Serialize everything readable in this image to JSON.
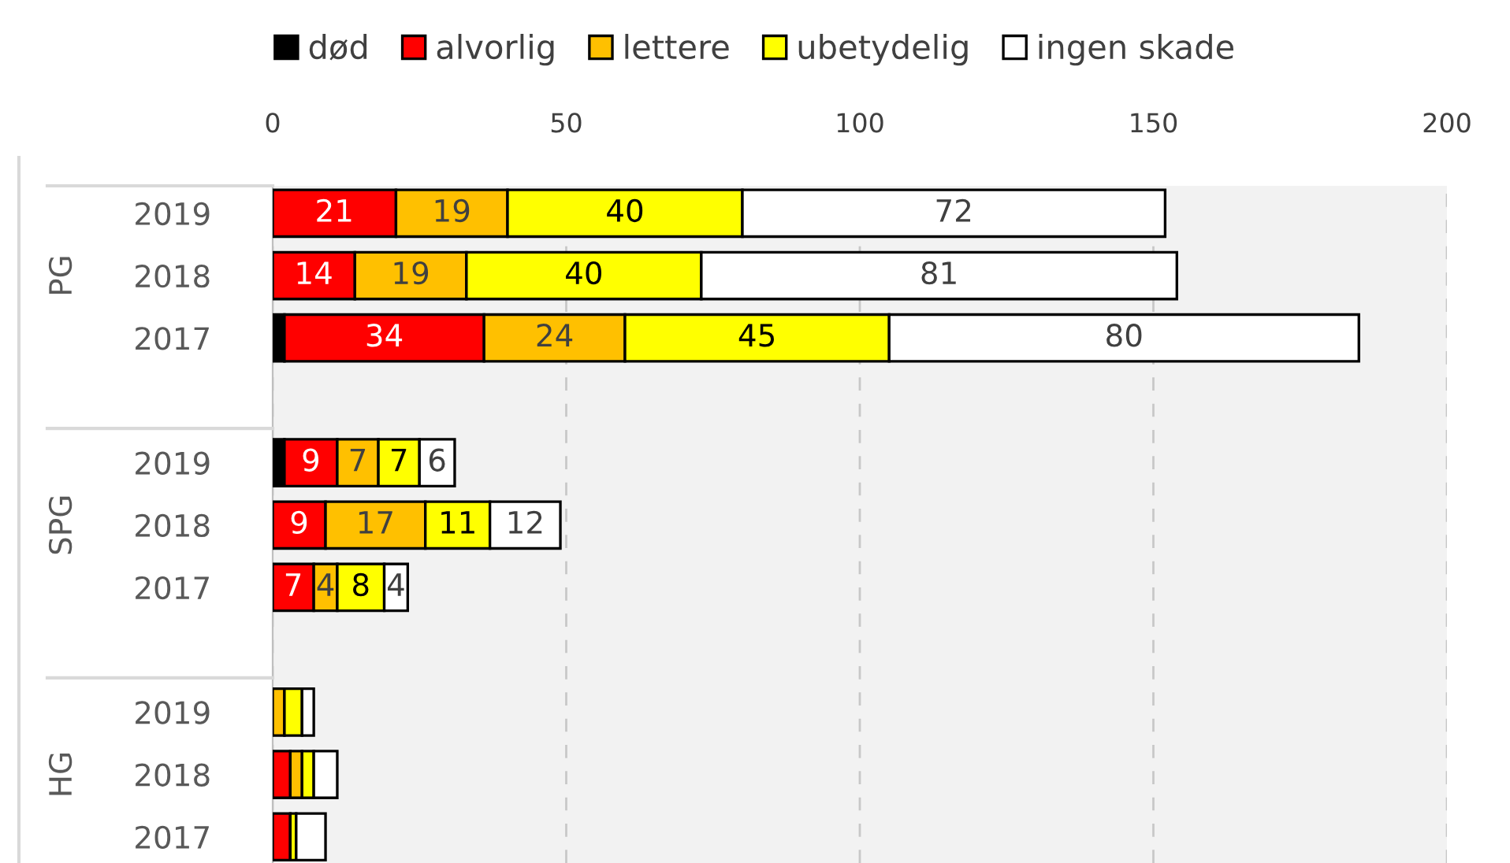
{
  "chart_data": {
    "type": "bar",
    "orientation": "horizontal",
    "stacked": true,
    "categories": [
      "2019",
      "2018",
      "2017",
      "2019",
      "2018",
      "2017",
      "2019",
      "2018",
      "2017"
    ],
    "annotations": [
      "PG",
      "SPG",
      "HG"
    ],
    "series": [
      {
        "name": "død",
        "color": "#000000",
        "values": [
          0,
          0,
          2,
          2,
          0,
          0,
          0,
          0,
          0
        ]
      },
      {
        "name": "alvorlig",
        "color": "#ff0000",
        "values": [
          21,
          14,
          34,
          9,
          9,
          7,
          0,
          3,
          3
        ],
        "value_labels": [
          "21",
          "14",
          "34",
          "9",
          "9",
          "7",
          null,
          null,
          null
        ]
      },
      {
        "name": "lettere",
        "color": "#ffc000",
        "values": [
          19,
          19,
          24,
          7,
          17,
          4,
          2,
          2,
          0
        ],
        "value_labels": [
          "19",
          "19",
          "24",
          "7",
          "17",
          "4",
          null,
          null,
          null
        ]
      },
      {
        "name": "ubetydelig",
        "color": "#ffff00",
        "values": [
          40,
          40,
          45,
          7,
          11,
          8,
          3,
          2,
          1
        ],
        "value_labels": [
          "40",
          "40",
          "45",
          "7",
          "11",
          "8",
          null,
          null,
          null
        ]
      },
      {
        "name": "ingen skade",
        "color": "#ffffff",
        "values": [
          72,
          81,
          80,
          6,
          12,
          4,
          2,
          4,
          5
        ],
        "value_labels": [
          "72",
          "81",
          "80",
          "6",
          "12",
          "4",
          null,
          null,
          null
        ]
      }
    ],
    "xlim": [
      0,
      200
    ],
    "xticks": [
      0,
      50,
      100,
      150,
      200
    ],
    "grid": "x",
    "legend": "top"
  }
}
